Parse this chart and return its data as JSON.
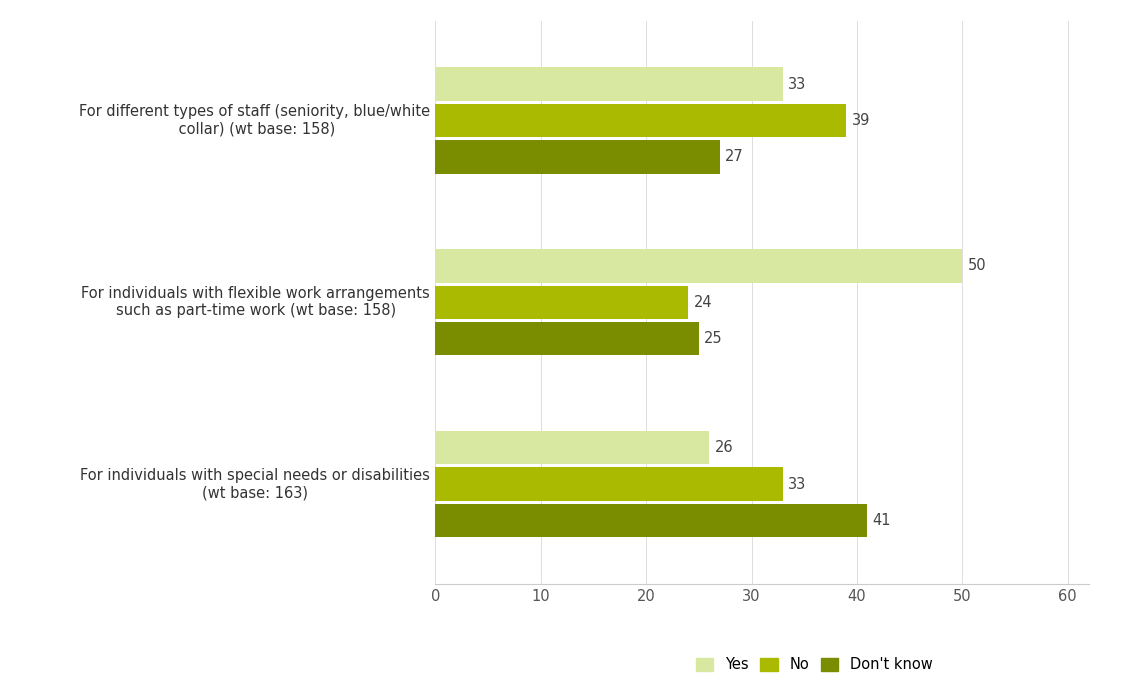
{
  "categories": [
    "For different types of staff (seniority, blue/white\n collar) (wt base: 158)",
    "For individuals with flexible work arrangements\nsuch as part-time work (wt base: 158)",
    "For individuals with special needs or disabilities\n(wt base: 163)"
  ],
  "series": {
    "Yes": [
      33,
      50,
      26
    ],
    "No": [
      39,
      24,
      33
    ],
    "Don't know": [
      27,
      25,
      41
    ]
  },
  "colors": {
    "Yes": "#d9e8a0",
    "No": "#aaba00",
    "Don't know": "#7a8c00"
  },
  "xlim": [
    0,
    62
  ],
  "xticks": [
    0,
    10,
    20,
    30,
    40,
    50,
    60
  ],
  "bar_height": 0.2,
  "legend_labels": [
    "Yes",
    "No",
    "Don't know"
  ],
  "background_color": "#ffffff",
  "label_fontsize": 10.5,
  "tick_fontsize": 10.5,
  "value_fontsize": 10.5,
  "legend_fontsize": 10.5
}
